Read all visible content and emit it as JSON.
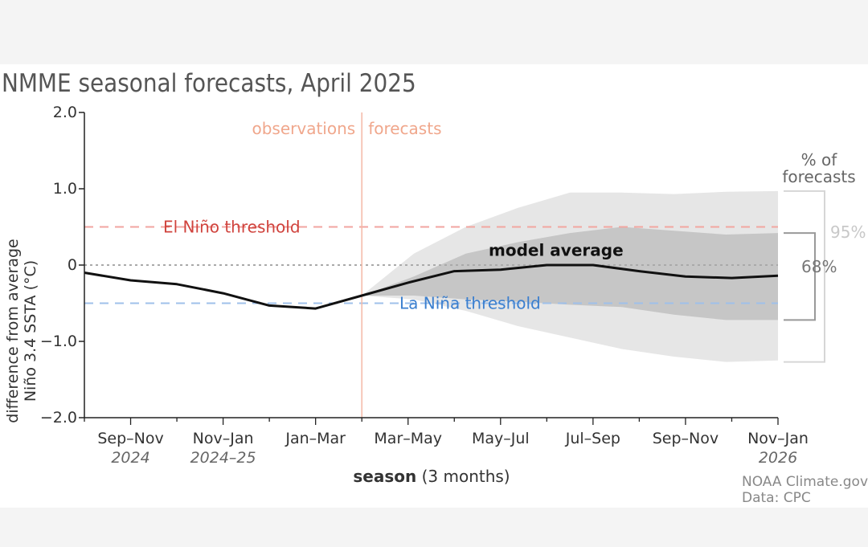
{
  "chart_data": {
    "type": "area",
    "title": "NMME seasonal forecasts, April 2025",
    "ylabel_line1": "difference from average",
    "ylabel_line2": "Niño 3.4 SSTA (°C)",
    "xlabel_bold": "season",
    "xlabel_rest": " (3 months)",
    "ylim": [
      -2.0,
      2.0
    ],
    "y_ticks": [
      {
        "value": 2.0,
        "label": "2.0"
      },
      {
        "value": 1.0,
        "label": "1.0"
      },
      {
        "value": 0,
        "label": "0"
      },
      {
        "value": -1.0,
        "label": "−1.0"
      },
      {
        "value": -2.0,
        "label": "−2.0"
      }
    ],
    "x_positions": [
      "Aug–Oct",
      "Sep–Nov",
      "Oct–Dec",
      "Nov–Jan",
      "Dec–Feb",
      "Jan–Mar",
      "Feb–Apr",
      "Mar–May",
      "Apr–Jun",
      "May–Jul",
      "Jun–Aug",
      "Jul–Sep",
      "Aug–Oct",
      "Sep–Nov",
      "Oct–Dec",
      "Nov–Jan"
    ],
    "x_tick_labels": [
      {
        "index": 1,
        "season": "Sep–Nov",
        "year": "2024"
      },
      {
        "index": 3,
        "season": "Nov–Jan",
        "year": "2024–25"
      },
      {
        "index": 5,
        "season": "Jan–Mar",
        "year": ""
      },
      {
        "index": 7,
        "season": "Mar–May",
        "year": ""
      },
      {
        "index": 9,
        "season": "May–Jul",
        "year": ""
      },
      {
        "index": 11,
        "season": "Jul–Sep",
        "year": ""
      },
      {
        "index": 13,
        "season": "Sep–Nov",
        "year": ""
      },
      {
        "index": 15,
        "season": "Nov–Jan",
        "year": "2026"
      }
    ],
    "divider_index": 6,
    "observations_label": "observations",
    "forecasts_label": "forecasts",
    "el_nino": {
      "value": 0.5,
      "label": "El Niño threshold",
      "color": "#d0433d"
    },
    "la_nina": {
      "value": -0.5,
      "label": "La Niña threshold",
      "color": "#3b7fcf"
    },
    "zero_line": 0,
    "series": [
      {
        "name": "model average",
        "color": "#111111",
        "values": [
          -0.1,
          -0.2,
          -0.25,
          -0.37,
          -0.53,
          -0.57,
          -0.4,
          -0.23,
          -0.08,
          -0.06,
          0.0,
          0.0,
          -0.08,
          -0.15,
          -0.17,
          -0.14
        ]
      }
    ],
    "band_start_index": 6,
    "band_95_upper": [
      -0.4,
      0.15,
      0.5,
      0.75,
      0.95,
      0.95,
      0.93,
      0.96,
      0.97
    ],
    "band_95_lower": [
      -0.4,
      -0.45,
      -0.6,
      -0.8,
      -0.95,
      -1.1,
      -1.2,
      -1.27,
      -1.25
    ],
    "band_68_upper": [
      -0.4,
      -0.15,
      0.15,
      0.3,
      0.42,
      0.5,
      0.45,
      0.4,
      0.42
    ],
    "band_68_lower": [
      -0.4,
      -0.4,
      -0.45,
      -0.48,
      -0.52,
      -0.55,
      -0.65,
      -0.72,
      -0.72
    ],
    "band_colors": {
      "band_95": "#e6e6e6",
      "band_68": "#c6c6c6"
    },
    "legend_title": "% of forecasts",
    "legend_95": "95%",
    "legend_68": "68%",
    "credit_line1": "NOAA Climate.gov",
    "credit_line2": "Data: CPC"
  }
}
